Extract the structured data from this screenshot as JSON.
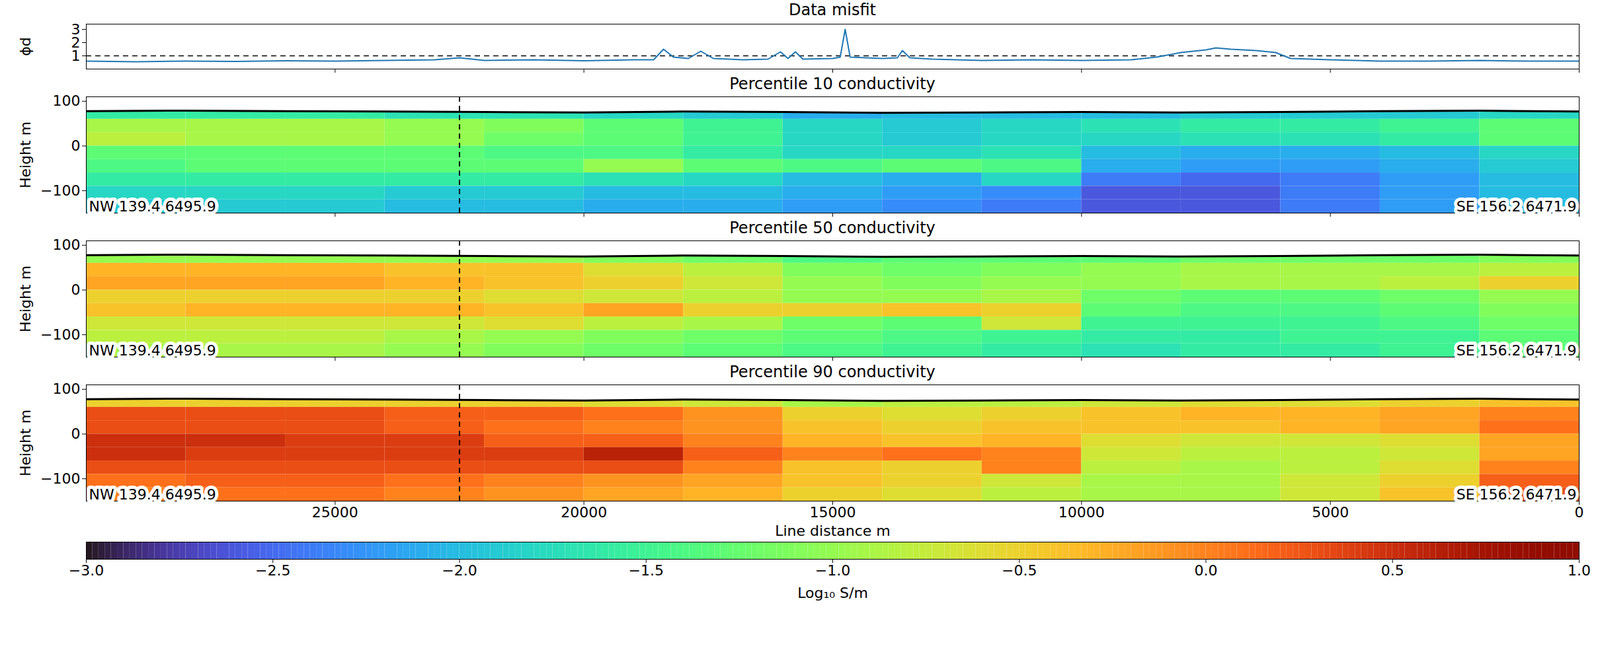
{
  "chart_data": [
    {
      "type": "line",
      "title": "Data misfit",
      "ylabel": "ϕd",
      "color": "#1f77b4",
      "xlim": [
        30000,
        0
      ],
      "ylim": [
        0,
        3.4
      ],
      "xticks": [
        25000,
        20000,
        15000,
        10000,
        5000,
        0
      ],
      "yticks": [
        1,
        2,
        3
      ],
      "tick_labels": "y",
      "reference_y": 1,
      "line_style": "dashed",
      "x": [
        30000,
        29000,
        28000,
        27000,
        26000,
        25000,
        24000,
        23000,
        22500,
        22000,
        21000,
        20000,
        19000,
        18600,
        18400,
        18200,
        17900,
        17650,
        17400,
        16800,
        16300,
        16050,
        15900,
        15750,
        15600,
        15000,
        14850,
        14750,
        14650,
        14000,
        13700,
        13600,
        13450,
        13000,
        12000,
        11000,
        10000,
        9000,
        8500,
        8000,
        7500,
        7300,
        7000,
        6500,
        6100,
        5800,
        5000,
        4000,
        3000,
        2000,
        1000,
        0
      ],
      "values": [
        0.6,
        0.55,
        0.6,
        0.58,
        0.62,
        0.6,
        0.65,
        0.7,
        0.85,
        0.65,
        0.7,
        0.62,
        0.7,
        0.7,
        1.5,
        0.9,
        0.8,
        1.35,
        0.8,
        0.7,
        0.75,
        1.3,
        0.8,
        1.3,
        0.75,
        0.8,
        0.9,
        3.0,
        0.9,
        0.8,
        0.85,
        1.4,
        0.85,
        0.75,
        0.65,
        0.7,
        0.65,
        0.7,
        0.9,
        1.25,
        1.45,
        1.6,
        1.5,
        1.4,
        1.25,
        0.8,
        0.7,
        0.6,
        0.6,
        0.65,
        0.6,
        0.6
      ]
    },
    {
      "type": "heatmap",
      "title": "Percentile 10 conductivity",
      "ylabel": "Height m",
      "xlim": [
        30000,
        0
      ],
      "ylim": [
        -150,
        110
      ],
      "xticks": [
        25000,
        20000,
        15000,
        10000,
        5000,
        0
      ],
      "yticks": [
        100,
        0,
        {
          "value": -100,
          "label": "−100"
        }
      ],
      "tick_labels": "y",
      "x_edges": [
        30000,
        28000,
        26000,
        24000,
        22000,
        20000,
        18000,
        16000,
        14000,
        12000,
        10000,
        8000,
        6000,
        4000,
        2000,
        0
      ],
      "y_edges": [
        90,
        60,
        30,
        0,
        -30,
        -60,
        -90,
        -120,
        -150
      ],
      "values": [
        [
          -1.6,
          -1.6,
          -1.6,
          -1.7,
          -1.7,
          -1.8,
          -1.9,
          -2.1,
          -2.0,
          -2.0,
          -2.0,
          -1.9,
          -1.9,
          -1.9,
          -1.8
        ],
        [
          -0.9,
          -0.9,
          -0.9,
          -1.0,
          -1.1,
          -1.3,
          -1.5,
          -1.8,
          -1.9,
          -1.8,
          -1.7,
          -1.6,
          -1.6,
          -1.5,
          -1.3
        ],
        [
          -0.8,
          -0.9,
          -0.9,
          -1.0,
          -1.2,
          -1.3,
          -1.5,
          -1.8,
          -1.9,
          -1.8,
          -1.8,
          -1.7,
          -1.7,
          -1.6,
          -1.3
        ],
        [
          -1.3,
          -1.3,
          -1.3,
          -1.3,
          -1.4,
          -1.4,
          -1.6,
          -1.8,
          -1.8,
          -1.7,
          -2.0,
          -2.1,
          -2.1,
          -2.0,
          -1.8
        ],
        [
          -1.4,
          -1.3,
          -1.3,
          -1.3,
          -1.3,
          -1.0,
          -1.3,
          -1.4,
          -1.3,
          -1.4,
          -2.1,
          -2.2,
          -2.2,
          -2.1,
          -1.9
        ],
        [
          -1.6,
          -1.6,
          -1.6,
          -1.6,
          -1.6,
          -1.7,
          -1.8,
          -2.0,
          -2.1,
          -1.8,
          -2.4,
          -2.5,
          -2.4,
          -2.2,
          -2.0
        ],
        [
          -1.8,
          -1.8,
          -1.8,
          -1.9,
          -1.9,
          -2.0,
          -2.0,
          -2.1,
          -2.2,
          -2.3,
          -2.6,
          -2.6,
          -2.4,
          -2.2,
          -2.0
        ],
        [
          -1.9,
          -1.9,
          -1.9,
          -2.0,
          -2.0,
          -2.1,
          -2.1,
          -2.2,
          -2.3,
          -2.4,
          -2.6,
          -2.6,
          -2.4,
          -2.2,
          -2.0
        ]
      ],
      "topography": {
        "x": [
          30000,
          28000,
          26000,
          24000,
          22000,
          20000,
          18000,
          16000,
          14000,
          12000,
          10000,
          8000,
          6000,
          4000,
          2000,
          0
        ],
        "height": [
          78,
          79,
          78,
          77,
          76,
          75,
          77,
          76,
          74,
          75,
          76,
          75,
          76,
          78,
          79,
          77
        ]
      },
      "reference_x": 22500,
      "line_style": "dashed",
      "annotations": [
        {
          "text": "NW 139.4 6495.9",
          "x": 30000,
          "y": -150,
          "anchor": "start"
        },
        {
          "text": "SE 156.2 6471.9",
          "x": 0,
          "y": -150,
          "anchor": "end"
        }
      ]
    },
    {
      "type": "heatmap",
      "title": "Percentile 50 conductivity",
      "ylabel": "Height m",
      "xlim": [
        30000,
        0
      ],
      "ylim": [
        -150,
        110
      ],
      "xticks": [
        25000,
        20000,
        15000,
        10000,
        5000,
        0
      ],
      "yticks": [
        100,
        0,
        {
          "value": -100,
          "label": "−100"
        }
      ],
      "tick_labels": "y",
      "x_edges": [
        30000,
        28000,
        26000,
        24000,
        22000,
        20000,
        18000,
        16000,
        14000,
        12000,
        10000,
        8000,
        6000,
        4000,
        2000,
        0
      ],
      "y_edges": [
        90,
        60,
        30,
        0,
        -30,
        -60,
        -90,
        -120,
        -150
      ],
      "values": [
        [
          -1.0,
          -1.0,
          -1.0,
          -1.0,
          -1.0,
          -1.1,
          -1.2,
          -1.4,
          -1.3,
          -1.3,
          -1.3,
          -1.2,
          -1.2,
          -1.2,
          -1.1
        ],
        [
          -0.3,
          -0.3,
          -0.3,
          -0.4,
          -0.4,
          -0.6,
          -0.8,
          -1.1,
          -1.2,
          -1.1,
          -1.0,
          -0.9,
          -0.9,
          -0.9,
          -0.8
        ],
        [
          -0.2,
          -0.2,
          -0.2,
          -0.3,
          -0.4,
          -0.5,
          -0.7,
          -1.0,
          -1.1,
          -1.0,
          -1.0,
          -0.9,
          -0.9,
          -0.8,
          -0.5
        ],
        [
          -0.5,
          -0.5,
          -0.5,
          -0.5,
          -0.6,
          -0.7,
          -0.8,
          -1.0,
          -1.0,
          -0.9,
          -1.2,
          -1.3,
          -1.3,
          -1.2,
          -1.0
        ],
        [
          -0.4,
          -0.3,
          -0.3,
          -0.3,
          -0.4,
          -0.2,
          -0.5,
          -0.5,
          -0.4,
          -0.5,
          -1.3,
          -1.4,
          -1.4,
          -1.3,
          -1.1
        ],
        [
          -0.7,
          -0.7,
          -0.7,
          -0.7,
          -0.6,
          -0.8,
          -0.9,
          -1.2,
          -1.3,
          -0.7,
          -1.5,
          -1.5,
          -1.5,
          -1.4,
          -1.2
        ],
        [
          -0.8,
          -0.8,
          -0.8,
          -0.9,
          -1.0,
          -1.1,
          -1.2,
          -1.3,
          -1.4,
          -1.5,
          -1.6,
          -1.6,
          -1.5,
          -1.5,
          -1.3
        ],
        [
          -0.9,
          -0.9,
          -0.9,
          -1.0,
          -1.1,
          -1.2,
          -1.3,
          -1.4,
          -1.5,
          -1.6,
          -1.7,
          -1.6,
          -1.6,
          -1.5,
          -1.3
        ]
      ],
      "topography": {
        "x": [
          30000,
          28000,
          26000,
          24000,
          22000,
          20000,
          18000,
          16000,
          14000,
          12000,
          10000,
          8000,
          6000,
          4000,
          2000,
          0
        ],
        "height": [
          78,
          79,
          78,
          77,
          76,
          75,
          77,
          76,
          74,
          75,
          76,
          75,
          76,
          78,
          79,
          77
        ]
      },
      "reference_x": 22500,
      "line_style": "dashed",
      "annotations": [
        {
          "text": "NW 139.4 6495.9",
          "x": 30000,
          "y": -150,
          "anchor": "start"
        },
        {
          "text": "SE 156.2 6471.9",
          "x": 0,
          "y": -150,
          "anchor": "end"
        }
      ]
    },
    {
      "type": "heatmap",
      "title": "Percentile 90 conductivity",
      "ylabel": "Height m",
      "xlabel": "Line distance m",
      "xlim": [
        30000,
        0
      ],
      "ylim": [
        -150,
        110
      ],
      "xticks": [
        25000,
        20000,
        15000,
        10000,
        5000,
        0
      ],
      "yticks": [
        100,
        0,
        {
          "value": -100,
          "label": "−100"
        }
      ],
      "x_edges": [
        30000,
        28000,
        26000,
        24000,
        22000,
        20000,
        18000,
        16000,
        14000,
        12000,
        10000,
        8000,
        6000,
        4000,
        2000,
        0
      ],
      "y_edges": [
        90,
        60,
        30,
        0,
        -30,
        -60,
        -90,
        -120,
        -150
      ],
      "values": [
        [
          -0.5,
          -0.5,
          -0.5,
          -0.5,
          -0.5,
          -0.6,
          -0.7,
          -0.9,
          -0.8,
          -0.8,
          -0.7,
          -0.6,
          -0.6,
          -0.5,
          -0.4
        ],
        [
          0.3,
          0.3,
          0.3,
          0.2,
          0.2,
          0.1,
          -0.1,
          -0.5,
          -0.6,
          -0.5,
          -0.4,
          -0.3,
          -0.3,
          -0.2,
          0.0
        ],
        [
          0.3,
          0.3,
          0.3,
          0.2,
          0.1,
          0.0,
          -0.1,
          -0.4,
          -0.5,
          -0.4,
          -0.4,
          -0.4,
          -0.3,
          -0.2,
          0.1
        ],
        [
          0.5,
          0.5,
          0.4,
          0.4,
          0.2,
          0.2,
          0.0,
          -0.3,
          -0.4,
          -0.3,
          -0.6,
          -0.7,
          -0.7,
          -0.6,
          -0.2
        ],
        [
          0.5,
          0.4,
          0.4,
          0.4,
          0.4,
          0.6,
          0.2,
          0.0,
          0.1,
          0.0,
          -0.7,
          -0.8,
          -0.8,
          -0.7,
          -0.2
        ],
        [
          0.3,
          0.3,
          0.3,
          0.3,
          0.3,
          0.3,
          0.0,
          -0.4,
          -0.5,
          0.0,
          -0.8,
          -0.9,
          -0.8,
          -0.6,
          0.0
        ],
        [
          0.1,
          0.2,
          0.2,
          0.1,
          0.0,
          -0.1,
          -0.2,
          -0.4,
          -0.5,
          -0.7,
          -0.9,
          -0.9,
          -0.7,
          -0.5,
          0.2
        ],
        [
          0.0,
          0.1,
          0.1,
          0.0,
          -0.1,
          -0.2,
          -0.3,
          -0.5,
          -0.6,
          -0.8,
          -0.9,
          -0.9,
          -0.7,
          -0.4,
          0.3
        ]
      ],
      "topography": {
        "x": [
          30000,
          28000,
          26000,
          24000,
          22000,
          20000,
          18000,
          16000,
          14000,
          12000,
          10000,
          8000,
          6000,
          4000,
          2000,
          0
        ],
        "height": [
          78,
          79,
          78,
          77,
          76,
          75,
          77,
          76,
          74,
          75,
          76,
          75,
          76,
          78,
          79,
          77
        ]
      },
      "reference_x": 22500,
      "line_style": "dashed",
      "annotations": [
        {
          "text": "NW 139.4 6495.9",
          "x": 30000,
          "y": -150,
          "anchor": "start"
        },
        {
          "text": "SE 156.2 6471.9",
          "x": 0,
          "y": -150,
          "anchor": "end"
        }
      ]
    },
    {
      "type": "colorbar",
      "label": "Log₁₀ S/m",
      "range": [
        -3,
        1
      ],
      "ticks": [
        {
          "value": -3,
          "label": "−3.0"
        },
        {
          "value": -2.5,
          "label": "−2.5"
        },
        {
          "value": -2,
          "label": "−2.0"
        },
        {
          "value": -1.5,
          "label": "−1.5"
        },
        {
          "value": -1,
          "label": "−1.0"
        },
        {
          "value": -0.5,
          "label": "−0.5"
        },
        {
          "value": 0,
          "label": "0.0"
        },
        {
          "value": 0.5,
          "label": "0.5"
        },
        {
          "value": 1,
          "label": "1.0"
        }
      ]
    }
  ]
}
